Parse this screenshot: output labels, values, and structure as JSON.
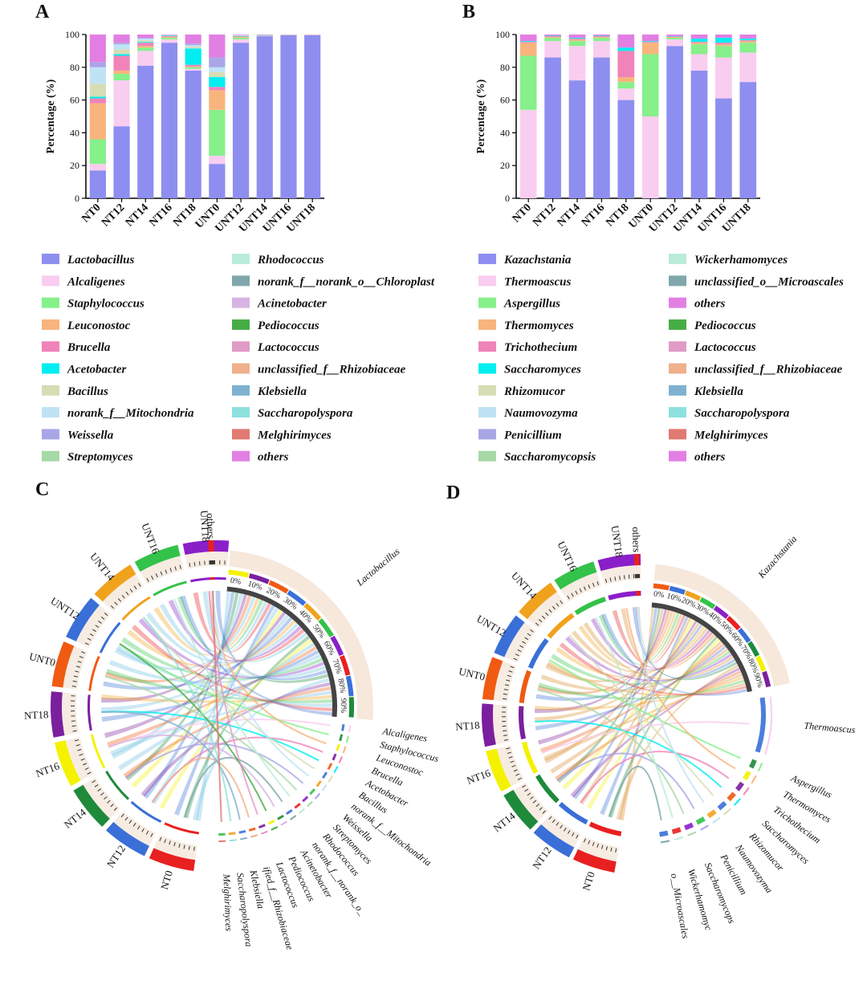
{
  "figure": {
    "panels": [
      "A",
      "B",
      "C",
      "D"
    ]
  },
  "colors": {
    "palette": [
      "#8e8ef0",
      "#f9cdf0",
      "#86f08a",
      "#f8b47c",
      "#f083b8",
      "#00eef0",
      "#d6ddb5",
      "#bfe3f5",
      "#a9a6e6",
      "#a7d9a7",
      "#b9ecd9",
      "#7fa7ab",
      "#d7b4e3",
      "#46ad46",
      "#e09bc6",
      "#f0b08c",
      "#7fb2d0",
      "#8ee0df",
      "#e07a72",
      "#e27fe3"
    ],
    "sample_ring": [
      "#e82020",
      "#3a6fd8",
      "#1e8a3a",
      "#f4f200",
      "#7b1f9e",
      "#f05a12",
      "#3a6fd8",
      "#f0a21d",
      "#33c24a",
      "#8a1fc9"
    ]
  },
  "chart_data": [
    {
      "type": "bar",
      "panel": "A",
      "stacked": true,
      "ylabel": "Percentage (%)",
      "ylim": [
        0,
        100
      ],
      "yticks": [
        "0",
        "20",
        "40",
        "60",
        "80",
        "100"
      ],
      "categories": [
        "NT0",
        "NT12",
        "NT14",
        "NT16",
        "NT18",
        "UNT0",
        "UNT12",
        "UNT14",
        "UNT16",
        "UNT18"
      ],
      "series": [
        {
          "name": "Lactobacillus",
          "values": [
            17,
            44,
            81,
            95,
            78,
            21,
            95,
            99,
            99.5,
            99.5
          ]
        },
        {
          "name": "Alcaligenes",
          "values": [
            4,
            28,
            9,
            2,
            1,
            5,
            2,
            0.3,
            0.2,
            0.2
          ]
        },
        {
          "name": "Staphylococcus",
          "values": [
            15,
            4,
            2,
            1,
            1,
            28,
            1,
            0.2,
            0.1,
            0.1
          ]
        },
        {
          "name": "Leuconostoc",
          "values": [
            22,
            2,
            1,
            0.5,
            0.5,
            12,
            0.5,
            0.1,
            0.1,
            0.1
          ]
        },
        {
          "name": "Brucella",
          "values": [
            3,
            9,
            2,
            0.5,
            1,
            2,
            0.3,
            0.1,
            0,
            0
          ]
        },
        {
          "name": "Acetobacter",
          "values": [
            1,
            1,
            0.5,
            0.3,
            10,
            6,
            0.2,
            0.1,
            0,
            0
          ]
        },
        {
          "name": "Bacillus",
          "values": [
            8,
            3,
            1,
            0.2,
            1,
            3,
            0.3,
            0,
            0,
            0
          ]
        },
        {
          "name": "norank_f__Mitochondria",
          "values": [
            10,
            3,
            1,
            0.2,
            1,
            3,
            0.3,
            0,
            0,
            0
          ]
        },
        {
          "name": "Weissella",
          "values": [
            3,
            1,
            0.5,
            0.1,
            1,
            6,
            0.2,
            0,
            0,
            0
          ]
        },
        {
          "name": "others",
          "values": [
            17,
            5,
            2,
            0.2,
            5.5,
            14,
            0.2,
            0.2,
            0.1,
            0.1
          ]
        }
      ],
      "legend": [
        "Lactobacillus",
        "Alcaligenes",
        "Staphylococcus",
        "Leuconostoc",
        "Brucella",
        "Acetobacter",
        "Bacillus",
        "norank_f__Mitochondria",
        "Weissella",
        "Streptomyces",
        "Rhodococcus",
        "norank_f__norank_o__Chloroplast",
        "Acinetobacter",
        "Pediococcus",
        "Lactococcus",
        "unclassified_f__Rhizobiaceae",
        "Klebsiella",
        "Saccharopolyspora",
        "Melghirimyces",
        "others"
      ]
    },
    {
      "type": "bar",
      "panel": "B",
      "stacked": true,
      "ylabel": "Percentage (%)",
      "ylim": [
        0,
        100
      ],
      "yticks": [
        "0",
        "20",
        "40",
        "60",
        "80",
        "100"
      ],
      "categories": [
        "NT0",
        "NT12",
        "NT14",
        "NT16",
        "NT18",
        "UNT0",
        "UNT12",
        "UNT14",
        "UNT16",
        "UNT18"
      ],
      "series": [
        {
          "name": "Kazachstania",
          "values": [
            0,
            86,
            72,
            86,
            60,
            0,
            93,
            78,
            61,
            71
          ]
        },
        {
          "name": "Thermoascus",
          "values": [
            54,
            10,
            21,
            10,
            7,
            50,
            4,
            10,
            25,
            18
          ]
        },
        {
          "name": "Aspergillus",
          "values": [
            33,
            2,
            3,
            2,
            4,
            38,
            1,
            6,
            7,
            6
          ]
        },
        {
          "name": "Thermomyces",
          "values": [
            8,
            0.5,
            1,
            0.5,
            3,
            7,
            0.5,
            1,
            1,
            1
          ]
        },
        {
          "name": "Trichothecium",
          "values": [
            0.5,
            0.5,
            0.5,
            0.5,
            16,
            0.5,
            0.3,
            0.5,
            1,
            0.5
          ]
        },
        {
          "name": "Saccharomyces",
          "values": [
            0.5,
            0.3,
            0.5,
            0.3,
            2,
            0.5,
            0.3,
            2,
            3,
            1
          ]
        },
        {
          "name": "others",
          "values": [
            4,
            0.7,
            2,
            0.7,
            8,
            4,
            0.9,
            2.5,
            2,
            2.5
          ]
        }
      ],
      "legend": [
        "Kazachstania",
        "Thermoascus",
        "Aspergillus",
        "Thermomyces",
        "Trichothecium",
        "Saccharomyces",
        "Rhizomucor",
        "Naumovozyma",
        "Penicillium",
        "Saccharomycopsis",
        "Wickerhamomyces",
        "unclassified_o__Microascales",
        "others",
        "Pediococcus",
        "Lactococcus",
        "unclassified_f__Rhizobiaceae",
        "Klebsiella",
        "Saccharopolyspora",
        "Melghirimyces",
        "others"
      ]
    },
    {
      "type": "chord",
      "panel": "C",
      "samples": [
        "NT0",
        "NT12",
        "NT14",
        "NT16",
        "NT18",
        "UNT0",
        "UNT12",
        "UNT14",
        "UNT16",
        "UNT18",
        "others"
      ],
      "taxa": [
        "Lactobacillus",
        "Alcaligenes",
        "Staphylococcus",
        "Leuconostoc",
        "Brucella",
        "Acetobacter",
        "Bacillus",
        "norank_f__Mitochondria",
        "Weissella",
        "Streptomyces",
        "Rhodococcus",
        "norank_f__norank_o__",
        "Acinetobacter",
        "Pediococcus",
        "Lactococcus",
        "unclassified_f__Rhizobiaceae",
        "Klebsiella",
        "Saccharopolyspora",
        "Melghirimyces"
      ],
      "taxa_shown": [
        "Lactobacillus",
        "Alcaligenes",
        "Staphylococcus",
        "Leuconostoc",
        "Brucella",
        "Acetobacter",
        "Bacillus",
        "norank_f__Mitochondria",
        "Weissella",
        "Streptomyces",
        "Rhodococcus",
        "norank_f__norank_o_",
        "Acinetobacter",
        "Pediococcus",
        "Lactococcus",
        "ified_f__Rhizobiaceae",
        "Klebsiella",
        "Saccharopolyspora",
        "Melghirimyces"
      ],
      "pct_ticks": [
        "0%",
        "10%",
        "20%",
        "30%",
        "40%",
        "50%",
        "60%",
        "70%",
        "80%",
        "90%"
      ]
    },
    {
      "type": "chord",
      "panel": "D",
      "samples": [
        "NT0",
        "NT12",
        "NT14",
        "NT16",
        "NT18",
        "UNT0",
        "UNT12",
        "UNT14",
        "UNT16",
        "UNT18",
        "others"
      ],
      "taxa": [
        "Kazachstania",
        "Thermoascus",
        "Aspergillus",
        "Thermomyces",
        "Trichothecium",
        "Saccharomyces",
        "Rhizomucor",
        "Naumovozyma",
        "Penicillium",
        "Saccharomycopsis",
        "Wickerhamomyces",
        "unclassified_o__Microascales"
      ],
      "taxa_shown": [
        "Kazachstania",
        "Thermoascus",
        "Aspergillus",
        "Thermomyces",
        "Trichothecium",
        "Saccharomyces",
        "Rhizomucor",
        "Naumovozyma",
        "Penicillium",
        "Saccharomycops",
        "Wickerhamomyc",
        "o__Microascales"
      ],
      "pct_ticks": [
        "0%",
        "10%",
        "20%",
        "30%",
        "40%",
        "50%",
        "60%",
        "70%",
        "80%",
        "90%"
      ]
    }
  ]
}
